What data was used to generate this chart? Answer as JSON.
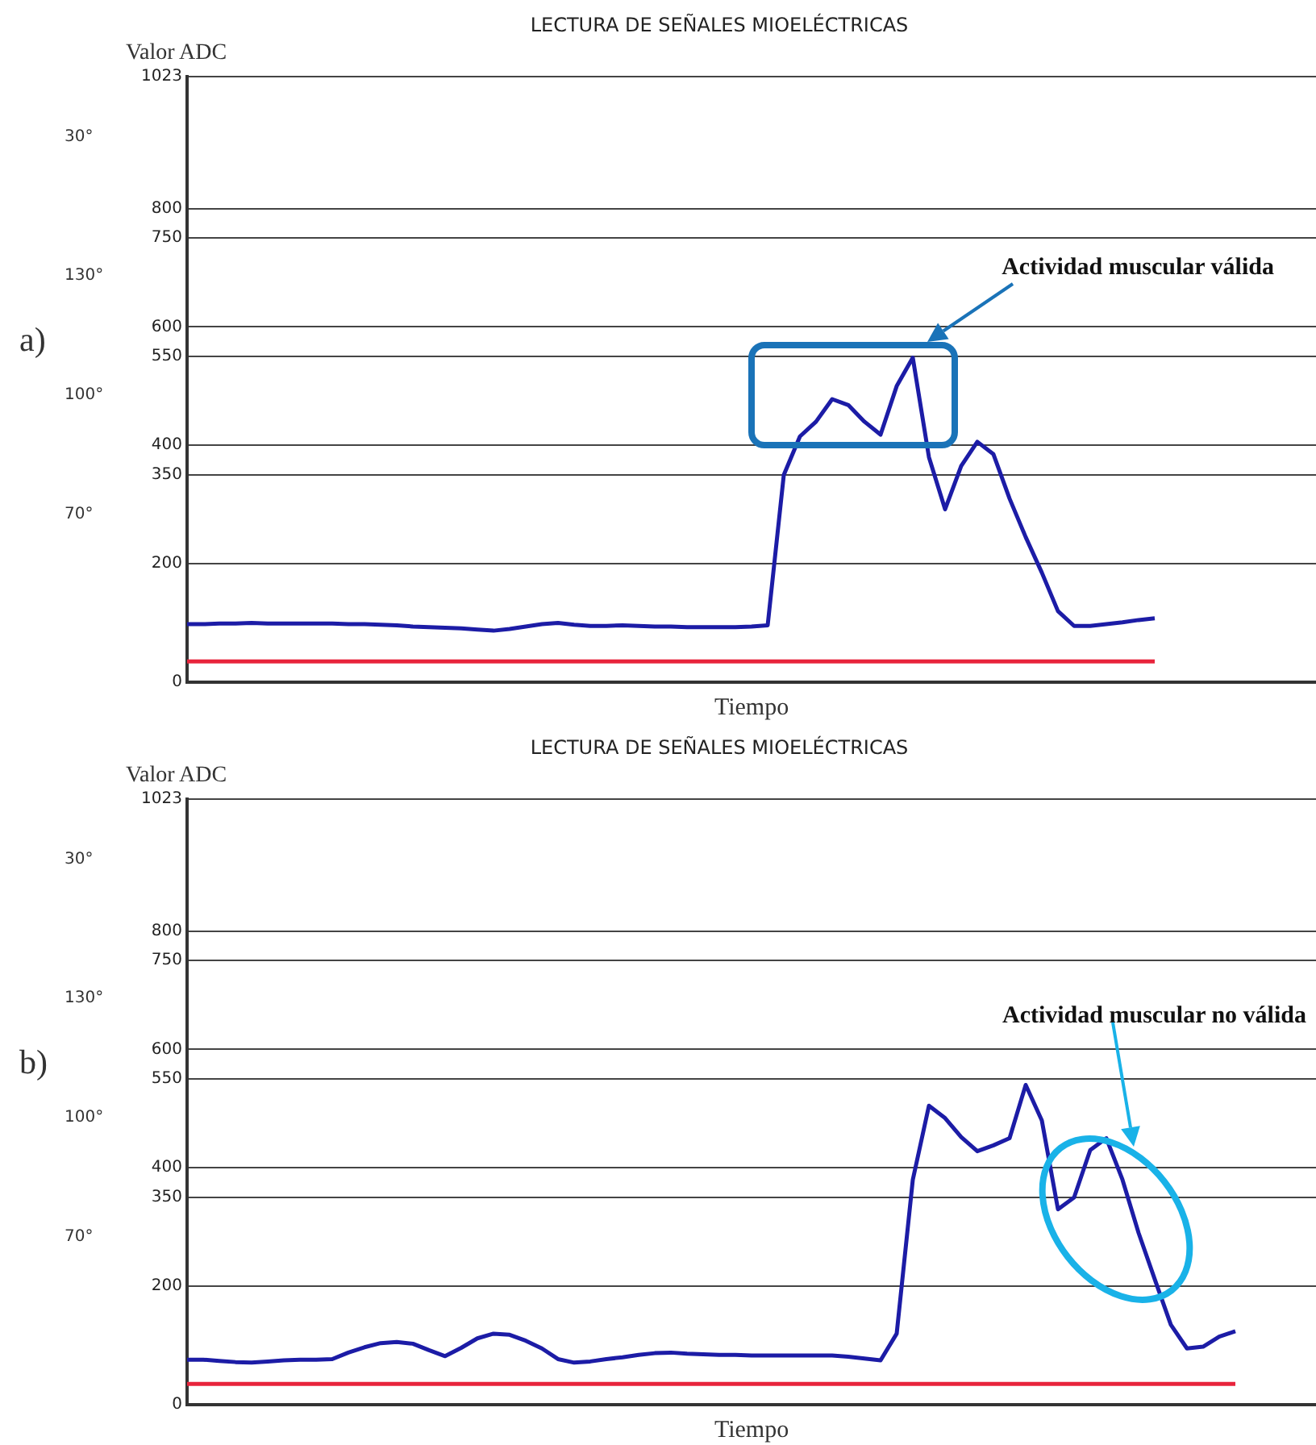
{
  "chart_data": [
    {
      "type": "line",
      "title": "LECTURA DE SEÑALES MIOELÉCTRICAS",
      "xlabel": "Tiempo",
      "ylabel": "Valor ADC",
      "annotations": [
        "a)",
        "Actividad muscular válida",
        "30°",
        "130°",
        "100°",
        "70°"
      ],
      "categories": [
        null,
        null,
        null,
        null,
        null,
        null,
        null,
        null,
        null,
        null,
        null,
        null,
        null,
        null,
        null,
        null,
        null,
        null,
        null,
        null,
        null,
        null,
        null,
        null,
        null,
        null,
        null,
        null,
        null,
        null,
        null,
        null,
        null,
        null,
        null,
        null,
        null,
        null,
        null,
        null,
        null,
        null,
        null,
        null,
        null,
        null,
        null,
        null,
        null,
        null,
        null,
        null,
        null,
        null,
        null,
        null,
        null,
        null,
        null,
        null,
        null,
        null,
        null,
        null,
        null,
        null,
        null,
        null,
        null,
        null,
        null
      ],
      "series": [
        {
          "color": "#1c1ca6",
          "values": [
            98,
            98,
            99,
            99,
            100,
            99,
            99,
            99,
            99,
            99,
            98,
            98,
            97,
            96,
            94,
            93,
            92,
            91,
            89,
            87,
            90,
            94,
            98,
            100,
            97,
            95,
            95,
            96,
            95,
            94,
            94,
            93,
            93,
            93,
            93,
            94,
            96,
            350,
            415,
            440,
            478,
            468,
            440,
            418,
            500,
            548,
            380,
            292,
            365,
            406,
            385,
            310,
            245,
            185,
            120,
            95,
            95,
            98,
            101,
            105,
            108,
            null,
            null,
            null,
            null,
            null,
            null,
            null,
            null,
            null,
            null
          ]
        },
        {
          "color": "#e8243c",
          "values": [
            35,
            35,
            35,
            35,
            35,
            35,
            35,
            35,
            35,
            35,
            35,
            35,
            35,
            35,
            35,
            35,
            35,
            35,
            35,
            35,
            35,
            35,
            35,
            35,
            35,
            35,
            35,
            35,
            35,
            35,
            35,
            35,
            35,
            35,
            35,
            35,
            35,
            35,
            35,
            35,
            35,
            35,
            35,
            35,
            35,
            35,
            35,
            35,
            35,
            35,
            35,
            35,
            35,
            35,
            35,
            35,
            35,
            35,
            35,
            35,
            35,
            null,
            null,
            null,
            null,
            null,
            null,
            null,
            null,
            null,
            null
          ]
        }
      ],
      "ylim": [
        0,
        1023
      ],
      "yticks": [
        0,
        200,
        350,
        400,
        550,
        600,
        750,
        800,
        1023
      ],
      "grid": "y"
    },
    {
      "type": "line",
      "title": "LECTURA DE SEÑALES MIOELÉCTRICAS",
      "xlabel": "Tiempo",
      "ylabel": "Valor ADC",
      "annotations": [
        "b)",
        "Actividad muscular no válida",
        "30°",
        "130°",
        "100°",
        "70°"
      ],
      "categories": [
        null,
        null,
        null,
        null,
        null,
        null,
        null,
        null,
        null,
        null,
        null,
        null,
        null,
        null,
        null,
        null,
        null,
        null,
        null,
        null,
        null,
        null,
        null,
        null,
        null,
        null,
        null,
        null,
        null,
        null,
        null,
        null,
        null,
        null,
        null,
        null,
        null,
        null,
        null,
        null,
        null,
        null,
        null,
        null,
        null,
        null,
        null,
        null,
        null,
        null,
        null,
        null,
        null,
        null,
        null,
        null,
        null,
        null,
        null,
        null,
        null,
        null,
        null,
        null,
        null,
        null,
        null,
        null,
        null,
        null,
        null
      ],
      "series": [
        {
          "color": "#1c1ca6",
          "values": [
            76,
            76,
            74,
            72,
            71,
            73,
            75,
            76,
            76,
            77,
            88,
            97,
            104,
            106,
            103,
            92,
            82,
            96,
            112,
            120,
            118,
            108,
            95,
            77,
            71,
            73,
            77,
            80,
            84,
            87,
            88,
            86,
            85,
            84,
            84,
            83,
            83,
            83,
            83,
            83,
            83,
            81,
            78,
            75,
            120,
            380,
            505,
            484,
            452,
            428,
            438,
            450,
            540,
            480,
            330,
            350,
            430,
            450,
            380,
            290,
            212,
            135,
            95,
            98,
            115,
            124,
            null,
            null,
            null,
            null,
            null
          ]
        },
        {
          "color": "#e8243c",
          "values": [
            35,
            35,
            35,
            35,
            35,
            35,
            35,
            35,
            35,
            35,
            35,
            35,
            35,
            35,
            35,
            35,
            35,
            35,
            35,
            35,
            35,
            35,
            35,
            35,
            35,
            35,
            35,
            35,
            35,
            35,
            35,
            35,
            35,
            35,
            35,
            35,
            35,
            35,
            35,
            35,
            35,
            35,
            35,
            35,
            35,
            35,
            35,
            35,
            35,
            35,
            35,
            35,
            35,
            35,
            35,
            35,
            35,
            35,
            35,
            35,
            35,
            35,
            35,
            35,
            35,
            35,
            null,
            null,
            null,
            null,
            null
          ]
        }
      ],
      "ylim": [
        0,
        1023
      ],
      "yticks": [
        0,
        200,
        350,
        400,
        550,
        600,
        750,
        800,
        1023
      ],
      "grid": "y"
    }
  ]
}
